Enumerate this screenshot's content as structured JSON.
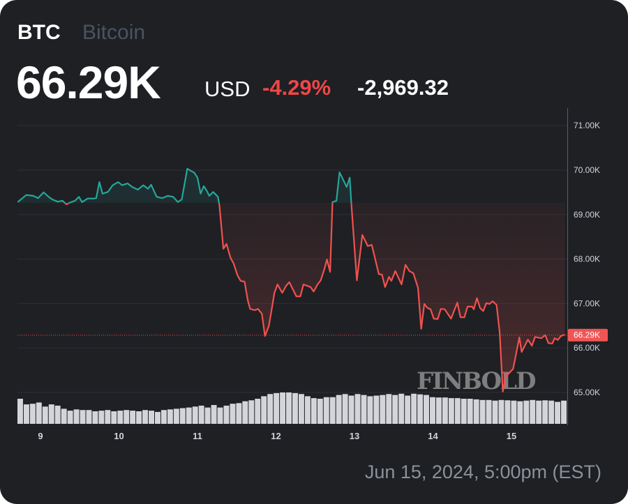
{
  "header": {
    "symbol": "BTC",
    "name": "Bitcoin",
    "price": "66.29K",
    "currency": "USD",
    "change_percent": "-4.29%",
    "change_abs": "-2,969.32"
  },
  "footer": {
    "timestamp": "Jun 15, 2024, 5:00pm (EST)"
  },
  "watermark": "FINBOLD",
  "colors": {
    "up": "#26a69a",
    "down": "#f0524f",
    "background": "#1e2024",
    "grid": "#2c2f36"
  },
  "chart_data": {
    "type": "line",
    "title": "BTC Bitcoin",
    "xlabel": "",
    "ylabel": "USD",
    "x_unit": "day of June 2024",
    "ylim": [
      64.3,
      71.4
    ],
    "y_ticks": [
      65,
      66,
      67,
      68,
      69,
      70,
      71
    ],
    "y_tick_labels": [
      "65.00K",
      "66.00K",
      "67.00K",
      "68.00K",
      "69.00K",
      "70.00K",
      "71.00K"
    ],
    "x_ticks": [
      9,
      10,
      11,
      12,
      13,
      14,
      15
    ],
    "x_tick_labels": [
      "9",
      "10",
      "11",
      "12",
      "13",
      "14",
      "15"
    ],
    "grid": true,
    "baseline_price": 69.26,
    "last_price": 66.29,
    "last_price_label": "66.29K",
    "series": [
      {
        "name": "BTC price (K USD)",
        "points": [
          [
            8.71,
            69.28
          ],
          [
            8.82,
            69.44
          ],
          [
            8.91,
            69.42
          ],
          [
            8.97,
            69.37
          ],
          [
            9.04,
            69.5
          ],
          [
            9.11,
            69.39
          ],
          [
            9.15,
            69.34
          ],
          [
            9.22,
            69.29
          ],
          [
            9.28,
            69.31
          ],
          [
            9.33,
            69.23
          ],
          [
            9.39,
            69.28
          ],
          [
            9.44,
            69.31
          ],
          [
            9.49,
            69.4
          ],
          [
            9.53,
            69.28
          ],
          [
            9.6,
            69.36
          ],
          [
            9.68,
            69.36
          ],
          [
            9.71,
            69.37
          ],
          [
            9.75,
            69.73
          ],
          [
            9.79,
            69.47
          ],
          [
            9.86,
            69.51
          ],
          [
            9.92,
            69.66
          ],
          [
            9.99,
            69.73
          ],
          [
            10.04,
            69.66
          ],
          [
            10.11,
            69.7
          ],
          [
            10.17,
            69.62
          ],
          [
            10.24,
            69.56
          ],
          [
            10.31,
            69.66
          ],
          [
            10.37,
            69.58
          ],
          [
            10.41,
            69.67
          ],
          [
            10.48,
            69.4
          ],
          [
            10.55,
            69.37
          ],
          [
            10.62,
            69.42
          ],
          [
            10.69,
            69.4
          ],
          [
            10.75,
            69.28
          ],
          [
            10.8,
            69.34
          ],
          [
            10.87,
            70.03
          ],
          [
            10.96,
            69.94
          ],
          [
            11.0,
            69.83
          ],
          [
            11.04,
            69.47
          ],
          [
            11.08,
            69.64
          ],
          [
            11.12,
            69.53
          ],
          [
            11.15,
            69.42
          ],
          [
            11.2,
            69.51
          ],
          [
            11.26,
            69.4
          ],
          [
            11.28,
            69.2
          ],
          [
            11.33,
            68.23
          ],
          [
            11.37,
            68.34
          ],
          [
            11.42,
            68.03
          ],
          [
            11.46,
            67.9
          ],
          [
            11.51,
            67.63
          ],
          [
            11.55,
            67.51
          ],
          [
            11.6,
            67.49
          ],
          [
            11.64,
            67.08
          ],
          [
            11.67,
            66.88
          ],
          [
            11.73,
            66.85
          ],
          [
            11.77,
            66.88
          ],
          [
            11.82,
            66.77
          ],
          [
            11.86,
            66.27
          ],
          [
            11.91,
            66.5
          ],
          [
            11.98,
            67.24
          ],
          [
            12.02,
            67.43
          ],
          [
            12.08,
            67.24
          ],
          [
            12.13,
            67.4
          ],
          [
            12.17,
            67.48
          ],
          [
            12.26,
            67.16
          ],
          [
            12.31,
            67.16
          ],
          [
            12.35,
            67.43
          ],
          [
            12.44,
            67.37
          ],
          [
            12.48,
            67.27
          ],
          [
            12.53,
            67.43
          ],
          [
            12.57,
            67.52
          ],
          [
            12.62,
            67.79
          ],
          [
            12.65,
            67.99
          ],
          [
            12.69,
            67.71
          ],
          [
            12.72,
            69.28
          ],
          [
            12.77,
            69.31
          ],
          [
            12.81,
            69.95
          ],
          [
            12.9,
            69.62
          ],
          [
            12.94,
            69.83
          ],
          [
            12.96,
            69.25
          ],
          [
            13.03,
            67.52
          ],
          [
            13.1,
            68.54
          ],
          [
            13.17,
            68.29
          ],
          [
            13.22,
            68.32
          ],
          [
            13.31,
            67.66
          ],
          [
            13.35,
            67.65
          ],
          [
            13.39,
            67.37
          ],
          [
            13.44,
            67.6
          ],
          [
            13.47,
            67.51
          ],
          [
            13.52,
            67.73
          ],
          [
            13.6,
            67.43
          ],
          [
            13.65,
            67.87
          ],
          [
            13.7,
            67.73
          ],
          [
            13.75,
            67.68
          ],
          [
            13.81,
            67.35
          ],
          [
            13.85,
            66.43
          ],
          [
            13.89,
            66.99
          ],
          [
            13.93,
            66.9
          ],
          [
            13.97,
            66.87
          ],
          [
            14.01,
            66.66
          ],
          [
            14.06,
            66.65
          ],
          [
            14.1,
            66.88
          ],
          [
            14.15,
            66.87
          ],
          [
            14.23,
            66.66
          ],
          [
            14.31,
            67.02
          ],
          [
            14.35,
            66.69
          ],
          [
            14.4,
            66.69
          ],
          [
            14.44,
            66.93
          ],
          [
            14.5,
            66.93
          ],
          [
            14.52,
            66.87
          ],
          [
            14.56,
            67.12
          ],
          [
            14.6,
            66.9
          ],
          [
            14.64,
            66.83
          ],
          [
            14.68,
            67.01
          ],
          [
            14.72,
            66.99
          ],
          [
            14.76,
            67.05
          ],
          [
            14.81,
            66.97
          ],
          [
            14.85,
            66.35
          ],
          [
            14.89,
            65.02
          ],
          [
            14.93,
            65.36
          ],
          [
            15.02,
            65.53
          ],
          [
            15.05,
            65.78
          ],
          [
            15.1,
            66.24
          ],
          [
            15.13,
            65.91
          ],
          [
            15.21,
            66.19
          ],
          [
            15.26,
            66.05
          ],
          [
            15.3,
            66.25
          ],
          [
            15.38,
            66.22
          ],
          [
            15.43,
            66.29
          ],
          [
            15.47,
            66.11
          ],
          [
            15.52,
            66.1
          ],
          [
            15.55,
            66.22
          ],
          [
            15.59,
            66.18
          ],
          [
            15.63,
            66.27
          ],
          [
            15.68,
            66.3
          ]
        ]
      },
      {
        "name": "Volume (relative)",
        "values": [
          80,
          62,
          64,
          68,
          55,
          62,
          58,
          48,
          42,
          46,
          44,
          44,
          40,
          42,
          44,
          40,
          42,
          44,
          42,
          40,
          44,
          42,
          38,
          44,
          46,
          48,
          50,
          52,
          55,
          58,
          52,
          60,
          52,
          58,
          64,
          66,
          72,
          75,
          80,
          88,
          95,
          98,
          100,
          100,
          98,
          95,
          88,
          82,
          80,
          85,
          85,
          92,
          95,
          90,
          95,
          92,
          88,
          90,
          92,
          95,
          92,
          96,
          90,
          96,
          94,
          92,
          85,
          84,
          84,
          82,
          82,
          80,
          80,
          78,
          76,
          76,
          74,
          76,
          75,
          74,
          72,
          74,
          76,
          74,
          75,
          74,
          70,
          74
        ]
      }
    ]
  }
}
